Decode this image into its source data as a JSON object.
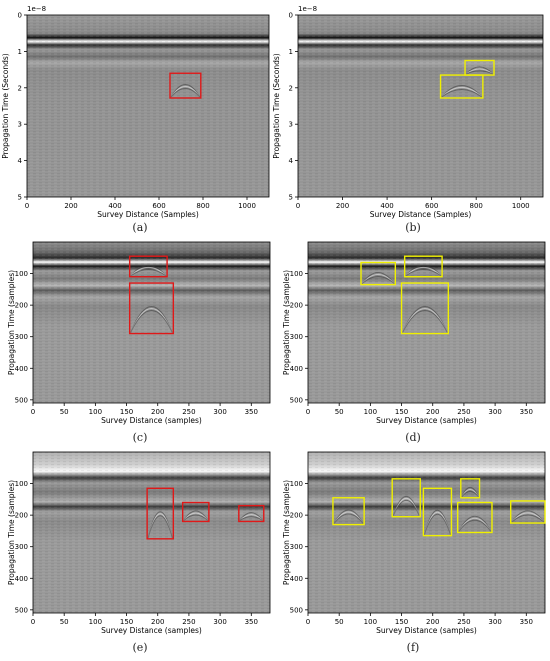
{
  "figure": {
    "captions": [
      "(a)",
      "(b)",
      "(c)",
      "(d)",
      "(e)",
      "(f)"
    ]
  },
  "colors": {
    "red_box": "#e01818",
    "yellow_box": "#f0f000",
    "axis": "#000000"
  },
  "panels": [
    {
      "id": "a",
      "xlabel": "Survey Distance (Samples)",
      "ylabel": "Propagation Time (Seconds)",
      "offset_text": "1e−8",
      "xlim": [
        0,
        1100
      ],
      "ylim": [
        5,
        0
      ],
      "xticks": [
        0,
        200,
        400,
        600,
        800,
        1000
      ],
      "yticks": [
        0,
        1,
        2,
        3,
        4,
        5
      ],
      "boxes_color": "red",
      "boxes": [
        {
          "x0": 650,
          "x1": 790,
          "y0": 1.6,
          "y1": 2.28
        }
      ],
      "image_type": "gpr-a"
    },
    {
      "id": "b",
      "xlabel": "Survey Distance (Samples)",
      "ylabel": "Propagation Time (Seconds)",
      "offset_text": "1e−8",
      "xlim": [
        0,
        1100
      ],
      "ylim": [
        5,
        0
      ],
      "xticks": [
        0,
        200,
        400,
        600,
        800,
        1000
      ],
      "yticks": [
        0,
        1,
        2,
        3,
        4,
        5
      ],
      "boxes_color": "yellow",
      "boxes": [
        {
          "x0": 640,
          "x1": 830,
          "y0": 1.65,
          "y1": 2.28
        },
        {
          "x0": 750,
          "x1": 880,
          "y0": 1.25,
          "y1": 1.65
        }
      ],
      "image_type": "gpr-a"
    },
    {
      "id": "c",
      "xlabel": "Survey Distance (samples)",
      "ylabel": "Propagation Time (samples)",
      "xlim": [
        0,
        380
      ],
      "ylim": [
        510,
        0
      ],
      "xticks": [
        0,
        50,
        100,
        150,
        200,
        250,
        300,
        350
      ],
      "yticks": [
        100,
        200,
        300,
        400,
        500
      ],
      "boxes_color": "red",
      "boxes": [
        {
          "x0": 155,
          "x1": 215,
          "y0": 45,
          "y1": 110
        },
        {
          "x0": 155,
          "x1": 225,
          "y0": 130,
          "y1": 290
        }
      ],
      "image_type": "gpr-c"
    },
    {
      "id": "d",
      "xlabel": "Survey Distance (samples)",
      "ylabel": "Propagation Time (samples)",
      "xlim": [
        0,
        380
      ],
      "ylim": [
        510,
        0
      ],
      "xticks": [
        0,
        50,
        100,
        150,
        200,
        250,
        300,
        350
      ],
      "yticks": [
        100,
        200,
        300,
        400,
        500
      ],
      "boxes_color": "yellow",
      "boxes": [
        {
          "x0": 85,
          "x1": 140,
          "y0": 65,
          "y1": 135
        },
        {
          "x0": 155,
          "x1": 215,
          "y0": 45,
          "y1": 110
        },
        {
          "x0": 150,
          "x1": 225,
          "y0": 130,
          "y1": 290
        }
      ],
      "image_type": "gpr-c"
    },
    {
      "id": "e",
      "xlabel": "Survey Distance (samples)",
      "ylabel": "Propagation Time (samples)",
      "xlim": [
        0,
        380
      ],
      "ylim": [
        510,
        0
      ],
      "xticks": [
        0,
        50,
        100,
        150,
        200,
        250,
        300,
        350
      ],
      "yticks": [
        100,
        200,
        300,
        400,
        500
      ],
      "boxes_color": "red",
      "boxes": [
        {
          "x0": 183,
          "x1": 225,
          "y0": 115,
          "y1": 275
        },
        {
          "x0": 240,
          "x1": 282,
          "y0": 160,
          "y1": 220
        },
        {
          "x0": 330,
          "x1": 370,
          "y0": 170,
          "y1": 220
        }
      ],
      "image_type": "gpr-e"
    },
    {
      "id": "f",
      "xlabel": "Survey Distance (samples)",
      "ylabel": "Propagation Time (samples)",
      "xlim": [
        0,
        380
      ],
      "ylim": [
        510,
        0
      ],
      "xticks": [
        0,
        50,
        100,
        150,
        200,
        250,
        300,
        350
      ],
      "yticks": [
        100,
        200,
        300,
        400,
        500
      ],
      "boxes_color": "yellow",
      "boxes": [
        {
          "x0": 40,
          "x1": 90,
          "y0": 145,
          "y1": 230
        },
        {
          "x0": 135,
          "x1": 180,
          "y0": 85,
          "y1": 205
        },
        {
          "x0": 185,
          "x1": 230,
          "y0": 115,
          "y1": 265
        },
        {
          "x0": 245,
          "x1": 275,
          "y0": 85,
          "y1": 145
        },
        {
          "x0": 240,
          "x1": 295,
          "y0": 160,
          "y1": 255
        },
        {
          "x0": 325,
          "x1": 380,
          "y0": 155,
          "y1": 225
        }
      ],
      "image_type": "gpr-e"
    }
  ]
}
